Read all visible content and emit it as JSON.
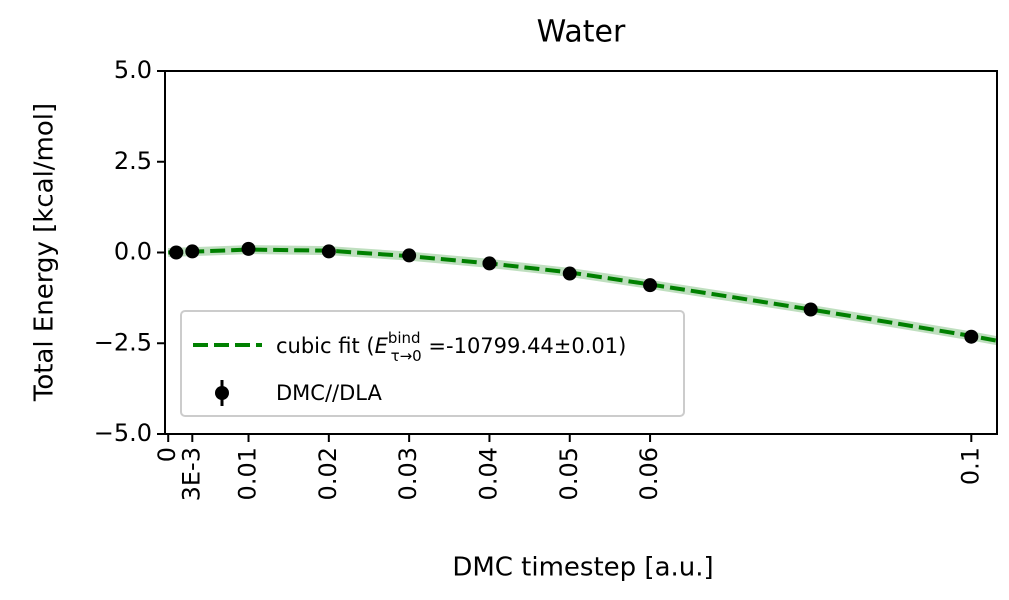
{
  "chart_data": {
    "type": "line",
    "title": "Water",
    "xlabel": "DMC timestep [a.u.]",
    "ylabel": "Total Energy [kcal/mol]",
    "xlim": [
      -0.0004,
      0.1032
    ],
    "ylim": [
      -5,
      5
    ],
    "xticks": [
      0,
      {
        "value": 0.003,
        "label": "3E-3"
      },
      0.01,
      0.02,
      0.03,
      0.04,
      0.05,
      0.06,
      0.1
    ],
    "yticks": [
      {
        "value": -5,
        "label": "−5.0"
      },
      {
        "value": -2.5,
        "label": "−2.5"
      },
      {
        "value": 0,
        "label": "0.0"
      },
      {
        "value": 2.5,
        "label": "2.5"
      },
      {
        "value": 5,
        "label": "5.0"
      }
    ],
    "series": [
      {
        "name": [
          "cubic fit (",
          "E",
          "bind",
          "τ→0",
          " =-10799.44±0.01)"
        ],
        "color": "#008000",
        "style": "dashed",
        "x": [
          0,
          0.01,
          0.02,
          0.03,
          0.04,
          0.05,
          0.06,
          0.07,
          0.08,
          0.09,
          0.1,
          0.1032
        ],
        "values": [
          0.0,
          0.08,
          0.05,
          -0.1,
          -0.3,
          -0.55,
          -0.88,
          -1.22,
          -1.57,
          -1.93,
          -2.3,
          -2.43
        ]
      },
      {
        "name": "DMC//DLA",
        "color": "#000000",
        "style": "errorbar",
        "x": [
          0.001,
          0.003,
          0.01,
          0.02,
          0.03,
          0.04,
          0.05,
          0.06,
          0.08,
          0.1
        ],
        "values": [
          0.0,
          0.03,
          0.1,
          0.03,
          -0.08,
          -0.3,
          -0.58,
          -0.9,
          -1.57,
          -2.32
        ]
      }
    ]
  }
}
